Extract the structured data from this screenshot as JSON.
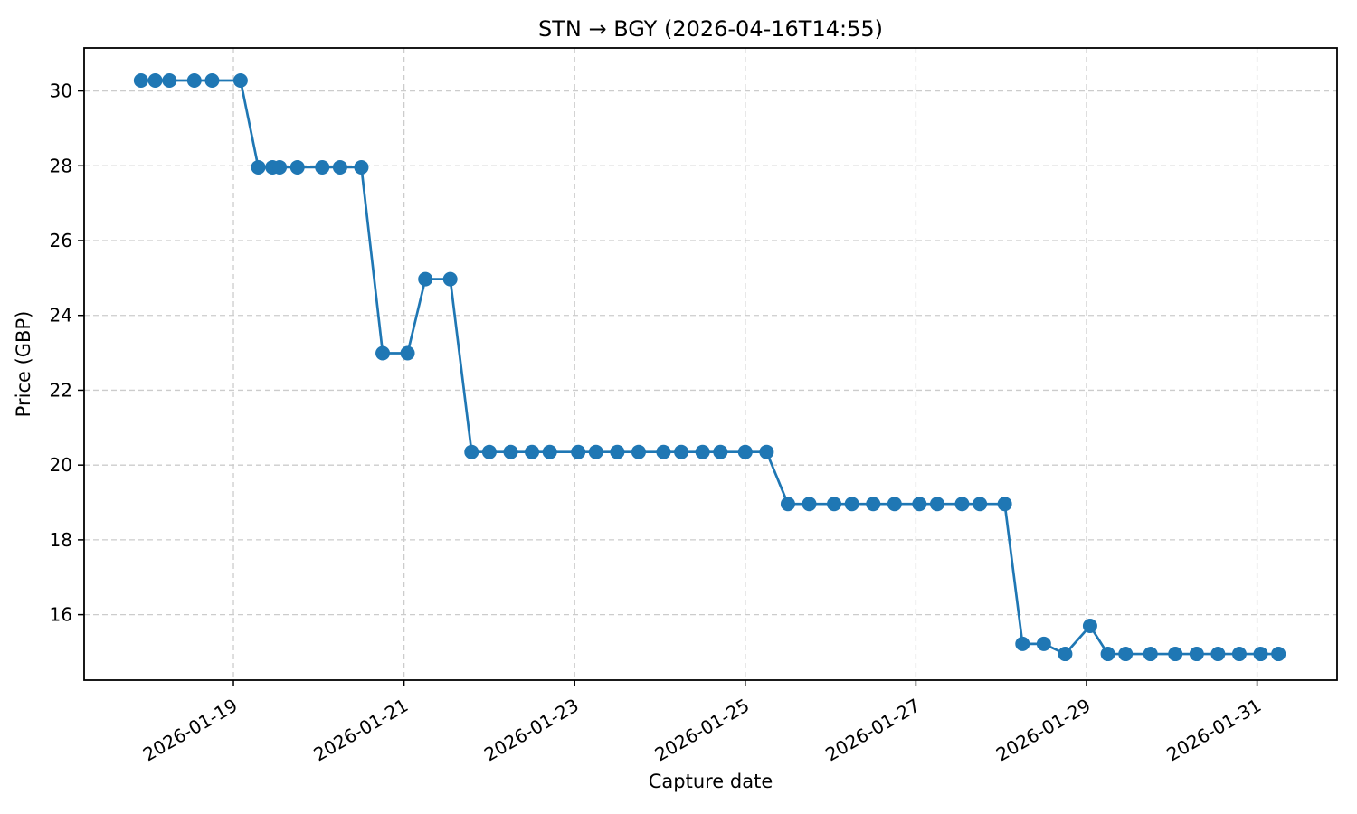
{
  "title": "STN → BGY (2026-04-16T14:55)",
  "colors": {
    "line": "#1f77b4",
    "grid": "#cccccc",
    "spine": "#000000",
    "text": "#000000",
    "background": "#ffffff"
  },
  "chart_data": {
    "type": "line",
    "title": "STN → BGY (2026-04-16T14:55)",
    "xlabel": "Capture date",
    "ylabel": "Price (GBP)",
    "legend": "none",
    "grid": true,
    "marker": "circle",
    "line_color": "#1f77b4",
    "x_tick_labels": [
      "2026-01-19",
      "2026-01-21",
      "2026-01-23",
      "2026-01-25",
      "2026-01-27",
      "2026-01-29",
      "2026-01-31"
    ],
    "y_ticks": [
      16,
      18,
      20,
      22,
      24,
      26,
      28,
      30
    ],
    "x_range": [
      "2026-01-17T06:00",
      "2026-01-31T22:30"
    ],
    "y_range": [
      14.25,
      31.15
    ],
    "points": [
      {
        "t": "2026-01-17T22:00",
        "price": 30.28
      },
      {
        "t": "2026-01-18T02:00",
        "price": 30.28
      },
      {
        "t": "2026-01-18T06:00",
        "price": 30.28
      },
      {
        "t": "2026-01-18T13:00",
        "price": 30.28
      },
      {
        "t": "2026-01-18T18:00",
        "price": 30.28
      },
      {
        "t": "2026-01-19T02:00",
        "price": 30.28
      },
      {
        "t": "2026-01-19T07:00",
        "price": 27.96
      },
      {
        "t": "2026-01-19T11:00",
        "price": 27.96
      },
      {
        "t": "2026-01-19T13:00",
        "price": 27.96
      },
      {
        "t": "2026-01-19T18:00",
        "price": 27.96
      },
      {
        "t": "2026-01-20T01:00",
        "price": 27.96
      },
      {
        "t": "2026-01-20T06:00",
        "price": 27.96
      },
      {
        "t": "2026-01-20T12:00",
        "price": 27.96
      },
      {
        "t": "2026-01-20T18:00",
        "price": 22.99
      },
      {
        "t": "2026-01-21T01:00",
        "price": 22.99
      },
      {
        "t": "2026-01-21T06:00",
        "price": 24.97
      },
      {
        "t": "2026-01-21T13:00",
        "price": 24.97
      },
      {
        "t": "2026-01-21T19:00",
        "price": 20.35
      },
      {
        "t": "2026-01-22T00:00",
        "price": 20.35
      },
      {
        "t": "2026-01-22T06:00",
        "price": 20.35
      },
      {
        "t": "2026-01-22T12:00",
        "price": 20.35
      },
      {
        "t": "2026-01-22T17:00",
        "price": 20.35
      },
      {
        "t": "2026-01-23T01:00",
        "price": 20.35
      },
      {
        "t": "2026-01-23T06:00",
        "price": 20.35
      },
      {
        "t": "2026-01-23T12:00",
        "price": 20.35
      },
      {
        "t": "2026-01-23T18:00",
        "price": 20.35
      },
      {
        "t": "2026-01-24T01:00",
        "price": 20.35
      },
      {
        "t": "2026-01-24T06:00",
        "price": 20.35
      },
      {
        "t": "2026-01-24T12:00",
        "price": 20.35
      },
      {
        "t": "2026-01-24T17:00",
        "price": 20.35
      },
      {
        "t": "2026-01-25T00:00",
        "price": 20.35
      },
      {
        "t": "2026-01-25T06:00",
        "price": 20.35
      },
      {
        "t": "2026-01-25T12:00",
        "price": 18.96
      },
      {
        "t": "2026-01-25T18:00",
        "price": 18.96
      },
      {
        "t": "2026-01-26T01:00",
        "price": 18.96
      },
      {
        "t": "2026-01-26T06:00",
        "price": 18.96
      },
      {
        "t": "2026-01-26T12:00",
        "price": 18.96
      },
      {
        "t": "2026-01-26T18:00",
        "price": 18.96
      },
      {
        "t": "2026-01-27T01:00",
        "price": 18.96
      },
      {
        "t": "2026-01-27T06:00",
        "price": 18.96
      },
      {
        "t": "2026-01-27T13:00",
        "price": 18.96
      },
      {
        "t": "2026-01-27T18:00",
        "price": 18.96
      },
      {
        "t": "2026-01-28T01:00",
        "price": 18.96
      },
      {
        "t": "2026-01-28T06:00",
        "price": 15.22
      },
      {
        "t": "2026-01-28T12:00",
        "price": 15.22
      },
      {
        "t": "2026-01-28T18:00",
        "price": 14.95
      },
      {
        "t": "2026-01-29T01:00",
        "price": 15.7
      },
      {
        "t": "2026-01-29T06:00",
        "price": 14.95
      },
      {
        "t": "2026-01-29T11:00",
        "price": 14.95
      },
      {
        "t": "2026-01-29T18:00",
        "price": 14.95
      },
      {
        "t": "2026-01-30T01:00",
        "price": 14.95
      },
      {
        "t": "2026-01-30T07:00",
        "price": 14.95
      },
      {
        "t": "2026-01-30T13:00",
        "price": 14.95
      },
      {
        "t": "2026-01-30T19:00",
        "price": 14.95
      },
      {
        "t": "2026-01-31T01:00",
        "price": 14.95
      },
      {
        "t": "2026-01-31T06:00",
        "price": 14.95
      }
    ]
  }
}
